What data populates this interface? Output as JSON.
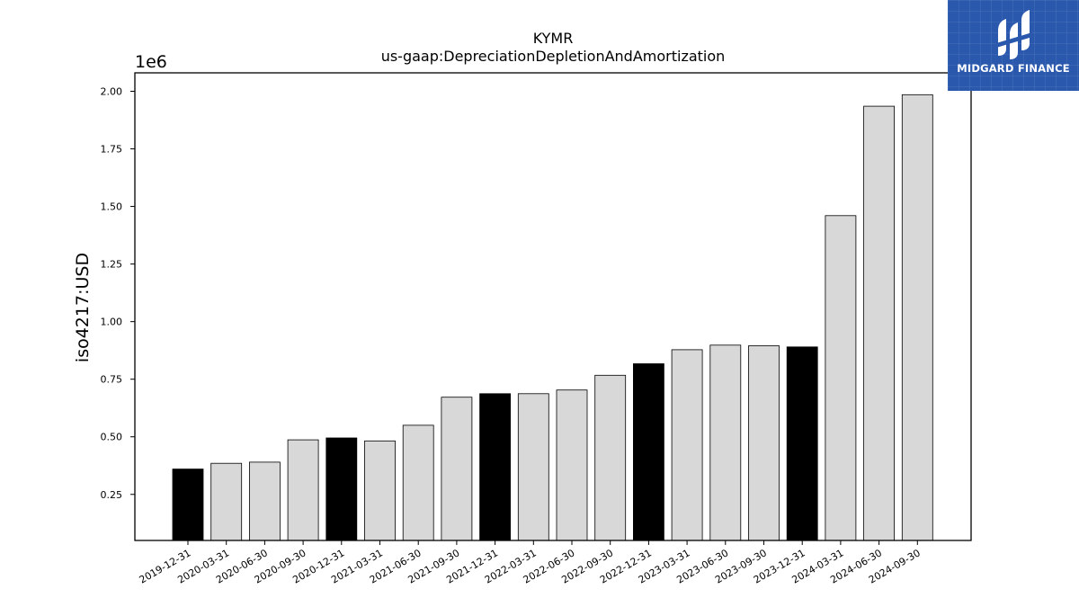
{
  "chart_data": {
    "type": "bar",
    "title": "KYMR",
    "subtitle": "us-gaap:DepreciationDepletionAndAmortization",
    "xlabel": "",
    "ylabel": "iso4217:USD",
    "y_offset_label": "1e6",
    "ylim": [
      0.05,
      2.08
    ],
    "yticks": [
      "0.25",
      "0.50",
      "0.75",
      "1.00",
      "1.25",
      "1.50",
      "1.75",
      "2.00"
    ],
    "categories": [
      "2019-12-31",
      "2020-03-31",
      "2020-06-30",
      "2020-09-30",
      "2020-12-31",
      "2021-03-31",
      "2021-06-30",
      "2021-09-30",
      "2021-12-31",
      "2022-03-31",
      "2022-06-30",
      "2022-09-30",
      "2022-12-31",
      "2023-03-31",
      "2023-06-30",
      "2023-09-30",
      "2023-12-31",
      "2024-03-31",
      "2024-06-30",
      "2024-09-30"
    ],
    "values": [
      0.36,
      0.385,
      0.39,
      0.487,
      0.495,
      0.482,
      0.55,
      0.672,
      0.687,
      0.687,
      0.703,
      0.767,
      0.817,
      0.878,
      0.898,
      0.895,
      0.89,
      1.46,
      1.935,
      1.985
    ],
    "annual_period_ends": [
      "2019-12-31",
      "2020-12-31",
      "2021-12-31",
      "2022-12-31",
      "2023-12-31"
    ],
    "colors": {
      "annual": "#000000",
      "quarterly": "#d8d8d8",
      "edge": "#000000"
    },
    "grid": false,
    "legend": "none"
  },
  "brand": {
    "name": "MIDGARD FINANCE",
    "background": "#2a58ad",
    "icon": "midgard-logo-icon"
  }
}
